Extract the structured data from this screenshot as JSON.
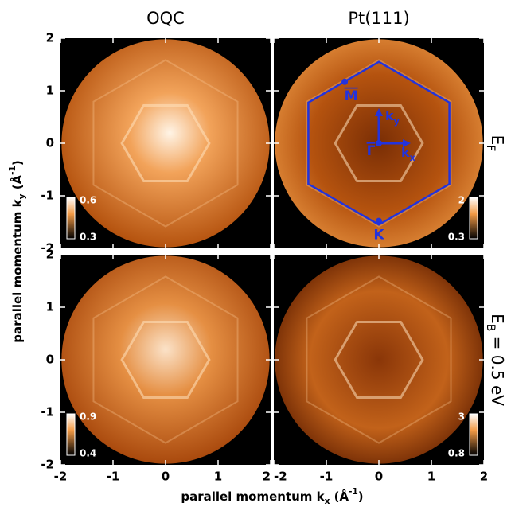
{
  "column_titles": [
    "OQC",
    "Pt(111)"
  ],
  "row_labels": [
    {
      "text": "E",
      "sub": "F"
    },
    {
      "text": "E",
      "sub": "B",
      "after": " = 0.5 eV"
    }
  ],
  "x_label": {
    "text": "parallel momentum k",
    "sub": "x",
    "after": " (Å",
    "sup": "-1",
    "end": ")"
  },
  "y_label": {
    "text": "parallel momentum k",
    "sub": "y",
    "after": " (Å",
    "sup": "-1",
    "end": ")"
  },
  "chart_data": [
    {
      "type": "image",
      "xlim": [
        -2,
        2
      ],
      "ylim": [
        -2,
        2
      ],
      "xticks": [
        -2,
        -1,
        0,
        1,
        2
      ],
      "yticks": [
        -2,
        -1,
        0,
        1,
        2
      ],
      "colorbar": {
        "max": 0.6,
        "min": 0.3
      }
    },
    {
      "type": "image",
      "xlim": [
        -2,
        2
      ],
      "ylim": [
        -2,
        2
      ],
      "xticks": [
        -2,
        -1,
        0,
        1,
        2
      ],
      "yticks": [
        -2,
        -1,
        0,
        1,
        2
      ],
      "colorbar": {
        "max": 2,
        "min": 0.3
      },
      "annotations": [
        {
          "text": "M",
          "x": -0.65,
          "y": 1.17
        },
        {
          "text": "Γ",
          "x": 0,
          "y": 0
        },
        {
          "text": "K",
          "x": 0,
          "y": -1.48
        }
      ],
      "axes_labels": [
        {
          "text": "k",
          "sub": "y"
        },
        {
          "text": "k",
          "sub": "x"
        }
      ]
    },
    {
      "type": "image",
      "xlim": [
        -2,
        2
      ],
      "ylim": [
        -2,
        2
      ],
      "xticks": [
        -2,
        -1,
        0,
        1,
        2
      ],
      "yticks": [
        -2,
        -1,
        0,
        1,
        2
      ],
      "colorbar": {
        "max": 0.9,
        "min": 0.4
      }
    },
    {
      "type": "image",
      "xlim": [
        -2,
        2
      ],
      "ylim": [
        -2,
        2
      ],
      "xticks": [
        -2,
        -1,
        0,
        1,
        2
      ],
      "yticks": [
        -2,
        -1,
        0,
        1,
        2
      ],
      "colorbar": {
        "max": 3,
        "min": 0.8
      }
    }
  ]
}
